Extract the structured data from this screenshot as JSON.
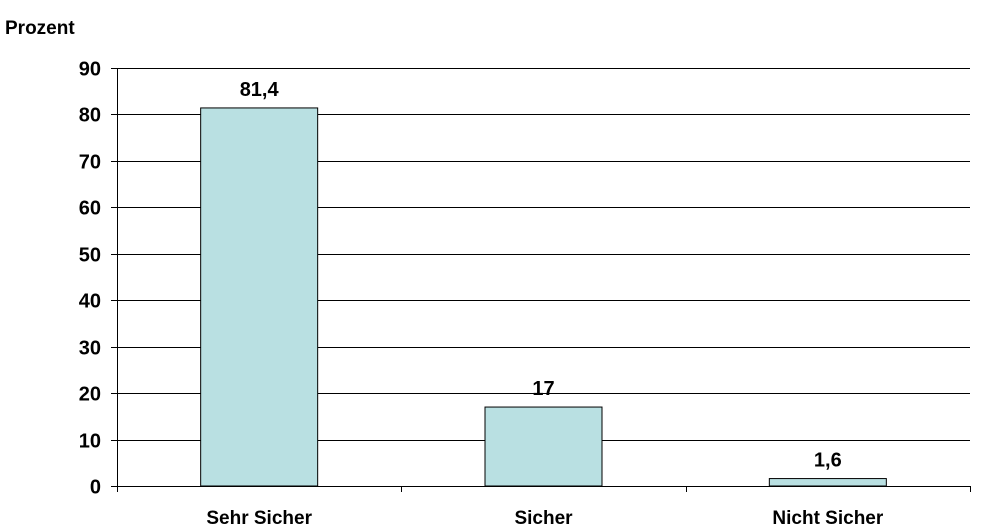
{
  "chart_data": {
    "type": "bar",
    "ylabel": "Prozent",
    "xlabel": "",
    "categories": [
      "Sehr Sicher",
      "Sicher",
      "Nicht Sicher"
    ],
    "values": [
      81.4,
      17,
      1.6
    ],
    "data_labels": [
      "81,4",
      "17",
      "1,6"
    ],
    "ylim": [
      0,
      90
    ],
    "yticks": [
      0,
      10,
      20,
      30,
      40,
      50,
      60,
      70,
      80,
      90
    ],
    "grid": true,
    "legend": "none",
    "colors": {
      "bar_fill": "#b9e0e2",
      "bar_stroke": "#000000",
      "grid": "#000000"
    }
  }
}
